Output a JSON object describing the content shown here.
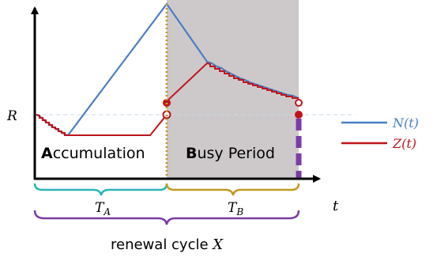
{
  "phase_a": {
    "initial": "A",
    "rest": "ccumulation"
  },
  "phase_b": {
    "initial": "B",
    "rest": "usy Period"
  },
  "labels": {
    "r_level": "R",
    "t_axis": "t",
    "t_a": {
      "base": "T",
      "sub": "A"
    },
    "t_b": {
      "base": "T",
      "sub": "B"
    },
    "cycle_text": "renewal cycle ",
    "cycle_var": "X"
  },
  "legend": [
    {
      "name": "N(t)",
      "color": "#4a7ec4"
    },
    {
      "name": "Z(t)",
      "color": "#c0141c"
    }
  ],
  "colors": {
    "busy_shade": "#cdc9ca",
    "brace_a": "#2ab5b2",
    "brace_b": "#c09a20",
    "brace_cycle": "#7b3ca6",
    "arrival_line": "#c49a2a",
    "renewal_mark": "#7b3ca6"
  }
}
